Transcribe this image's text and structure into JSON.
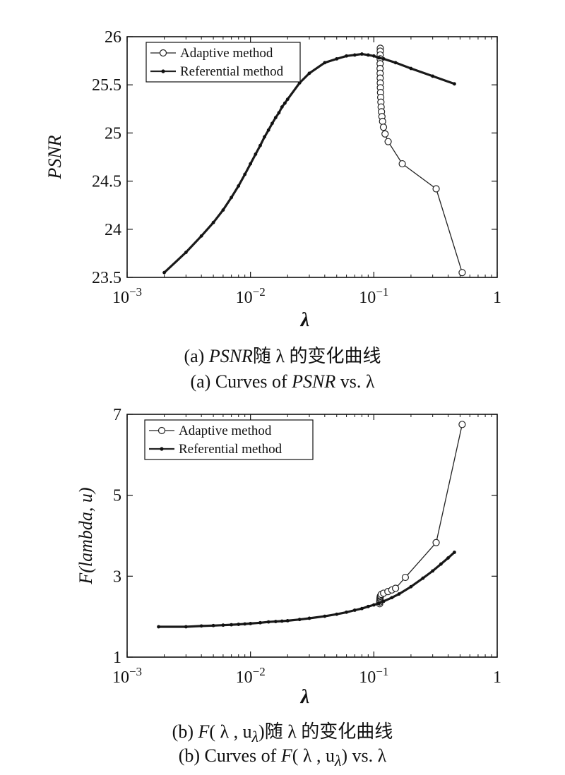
{
  "captions": {
    "a_zh_prefix": "(a) ",
    "a_zh_italic": "PSNR",
    "a_zh_suffix": "随 λ 的变化曲线",
    "a_en_prefix": "(a) Curves of ",
    "a_en_italic": "PSNR",
    "a_en_suffix": " vs.  λ",
    "b_zh_prefix": "(b) ",
    "b_zh_italic": "F",
    "b_zh_suffix": "( λ , u",
    "b_zh_sub": "λ",
    "b_zh_end": ")随 λ 的变化曲线",
    "b_en_prefix": "(b) Curves of ",
    "b_en_italic": "F",
    "b_en_suffix": "( λ , u",
    "b_en_sub": "λ",
    "b_en_end": ") vs.  λ"
  },
  "chart_data": [
    {
      "type": "line",
      "xscale": "log",
      "xlim": [
        0.001,
        1
      ],
      "ylim": [
        23.5,
        26
      ],
      "xlabel": "λ",
      "ylabel": "PSNR",
      "xticks": [
        {
          "base": "10",
          "exp": "−3"
        },
        {
          "base": "10",
          "exp": "−2"
        },
        {
          "base": "10",
          "exp": "−1"
        },
        {
          "base": "1",
          "exp": ""
        }
      ],
      "yticks": [
        "23.5",
        "24",
        "24.5",
        "25",
        "25.5",
        "26"
      ],
      "ytick_values": [
        23.5,
        24,
        24.5,
        25,
        25.5,
        26
      ],
      "legend": {
        "position": "top-left",
        "entries": [
          "Adaptive method",
          "Referential method"
        ]
      },
      "series": [
        {
          "name": "Adaptive method",
          "marker": "circle",
          "x": [
            0.1128,
            0.1127,
            0.1126,
            0.1125,
            0.1124,
            0.1124,
            0.1125,
            0.1126,
            0.1128,
            0.113,
            0.1133,
            0.1137,
            0.1141,
            0.1146,
            0.1153,
            0.1163,
            0.1177,
            0.1197,
            0.1233,
            0.1306,
            0.17,
            0.32,
            0.52
          ],
          "y": [
            25.88,
            25.85,
            25.81,
            25.77,
            25.72,
            25.67,
            25.62,
            25.57,
            25.52,
            25.47,
            25.42,
            25.37,
            25.32,
            25.27,
            25.22,
            25.17,
            25.12,
            25.06,
            24.99,
            24.91,
            24.68,
            24.42,
            23.55
          ]
        },
        {
          "name": "Referential method",
          "marker": "dot",
          "x": [
            0.002,
            0.003,
            0.004,
            0.005,
            0.006,
            0.007,
            0.008,
            0.009,
            0.01,
            0.011,
            0.012,
            0.013,
            0.014,
            0.015,
            0.016,
            0.017,
            0.018,
            0.019,
            0.02,
            0.025,
            0.03,
            0.04,
            0.05,
            0.06,
            0.07,
            0.08,
            0.09,
            0.1,
            0.11,
            0.12,
            0.15,
            0.2,
            0.3,
            0.45
          ],
          "y": [
            23.55,
            23.76,
            23.93,
            24.07,
            24.2,
            24.33,
            24.45,
            24.57,
            24.68,
            24.78,
            24.87,
            24.96,
            25.03,
            25.1,
            25.16,
            25.21,
            25.27,
            25.31,
            25.35,
            25.52,
            25.62,
            25.73,
            25.77,
            25.8,
            25.81,
            25.82,
            25.81,
            25.8,
            25.78,
            25.77,
            25.73,
            25.67,
            25.59,
            25.51
          ]
        }
      ]
    },
    {
      "type": "line",
      "xscale": "log",
      "xlim": [
        0.001,
        1
      ],
      "ylim": [
        1,
        7
      ],
      "xlabel": "λ",
      "ylabel": "F(lambda, u)",
      "xticks": [
        {
          "base": "10",
          "exp": "−3"
        },
        {
          "base": "10",
          "exp": "−2"
        },
        {
          "base": "10",
          "exp": "−1"
        },
        {
          "base": "1",
          "exp": ""
        }
      ],
      "yticks": [
        "1",
        "3",
        "5",
        "7"
      ],
      "ytick_values": [
        1,
        3,
        5,
        7
      ],
      "legend": {
        "position": "top-left",
        "entries": [
          "Adaptive method",
          "Referential method"
        ]
      },
      "series": [
        {
          "name": "Adaptive method",
          "marker": "circle",
          "x": [
            0.1115,
            0.1117,
            0.1119,
            0.1121,
            0.1124,
            0.1128,
            0.1135,
            0.115,
            0.12,
            0.13,
            0.14,
            0.15,
            0.18,
            0.32,
            0.52
          ],
          "y": [
            2.32,
            2.36,
            2.4,
            2.44,
            2.47,
            2.5,
            2.52,
            2.55,
            2.58,
            2.62,
            2.66,
            2.7,
            2.97,
            3.83,
            6.75
          ]
        },
        {
          "name": "Referential method",
          "marker": "dot",
          "x": [
            0.0018,
            0.003,
            0.004,
            0.005,
            0.006,
            0.007,
            0.008,
            0.009,
            0.01,
            0.012,
            0.014,
            0.016,
            0.018,
            0.02,
            0.025,
            0.03,
            0.04,
            0.05,
            0.06,
            0.07,
            0.08,
            0.09,
            0.1,
            0.11,
            0.12,
            0.14,
            0.16,
            0.2,
            0.25,
            0.3,
            0.35,
            0.4,
            0.45
          ],
          "y": [
            1.75,
            1.75,
            1.77,
            1.78,
            1.79,
            1.8,
            1.81,
            1.82,
            1.83,
            1.85,
            1.87,
            1.88,
            1.89,
            1.9,
            1.93,
            1.96,
            2.01,
            2.06,
            2.11,
            2.16,
            2.2,
            2.25,
            2.29,
            2.33,
            2.38,
            2.47,
            2.56,
            2.74,
            2.95,
            3.13,
            3.3,
            3.45,
            3.59
          ]
        }
      ]
    }
  ]
}
